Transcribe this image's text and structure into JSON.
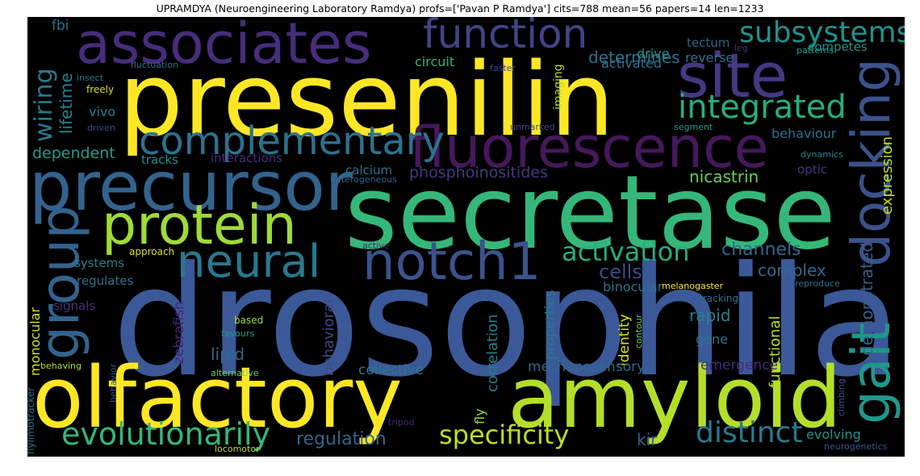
{
  "title": "UPRAMDYA (Neuroengineering Laboratory Ramdya) profs=['Pavan P Ramdya'] cits=788 mean=56 papers=14 len=1233",
  "words": {
    "drosophila": "drosophila",
    "secretase": "secretase",
    "presenilin": "presenilin",
    "olfactory": "olfactory",
    "amyloid": "amyloid",
    "precursor": "precursor",
    "fluorescence": "fluorescence",
    "associates": "associates",
    "site": "site",
    "protein": "protein",
    "notch1": "notch1",
    "neural": "neural",
    "gait": "gait",
    "docking": "docking",
    "group": "group",
    "function": "function",
    "complementary": "complementary",
    "integrated": "integrated",
    "subsystems": "subsystems",
    "evolutionarily": "evolutionarily",
    "specificity": "specificity",
    "distinct": "distinct",
    "activation": "activation",
    "wiring": "wiring",
    "determines": "determines",
    "regulation": "regulation",
    "channels": "channels",
    "cells": "cells",
    "phosphoinositides": "phosphoinositides",
    "complex": "complex",
    "nicastrin": "nicastrin",
    "demonstrated": "demonstrated",
    "lipid": "lipid",
    "dependent": "dependent",
    "collective": "collective",
    "mechanosensory": "mechanosensory",
    "behavioral": "behavioral",
    "functional": "functional",
    "expression": "expression",
    "kir": "kir",
    "evolving": "evolving",
    "emergence": "emergence",
    "rapid": "rapid",
    "identity": "identity",
    "correlation": "correlation",
    "binocular": "binocular",
    "circuit": "circuit",
    "calcium": "calcium",
    "zebrafish": "zebrafish",
    "properties": "properties",
    "tectum": "tectum",
    "behaviour": "behaviour",
    "reverse": "reverse",
    "competes": "competes",
    "drive": "drive",
    "activated": "activated",
    "interactions": "interactions",
    "systems": "systems",
    "regulates": "regulates",
    "vivo": "vivo",
    "imaging": "imaging",
    "lifetime": "lifetime",
    "tracks": "tracks",
    "monocular": "monocular",
    "signals": "signals",
    "gene": "gene",
    "optic": "optic",
    "fbi": "fbi",
    "fly": "fly",
    "melanogaster": "melanogaster",
    "fluctuation": "fluctuation",
    "insect": "insect",
    "freely": "freely",
    "driven": "driven",
    "faster": "faster",
    "leg": "leg",
    "patterns": "patterns",
    "unmarked": "unmarked",
    "segment": "segment",
    "dynamics": "dynamics",
    "heterogeneous": "heterogeneous",
    "active": "active",
    "approach": "approach",
    "reproduce": "reproduce",
    "tracking": "tracking",
    "based": "based",
    "favours": "favours",
    "contour": "contour",
    "behaving": "behaving",
    "alternative": "alternative",
    "behavior": "behavior",
    "flylimbtracker": "flylimbtracker",
    "climbing": "climbing",
    "tripod": "tripod",
    "locomotor": "locomotor",
    "neurogenetics": "neurogenetics"
  }
}
